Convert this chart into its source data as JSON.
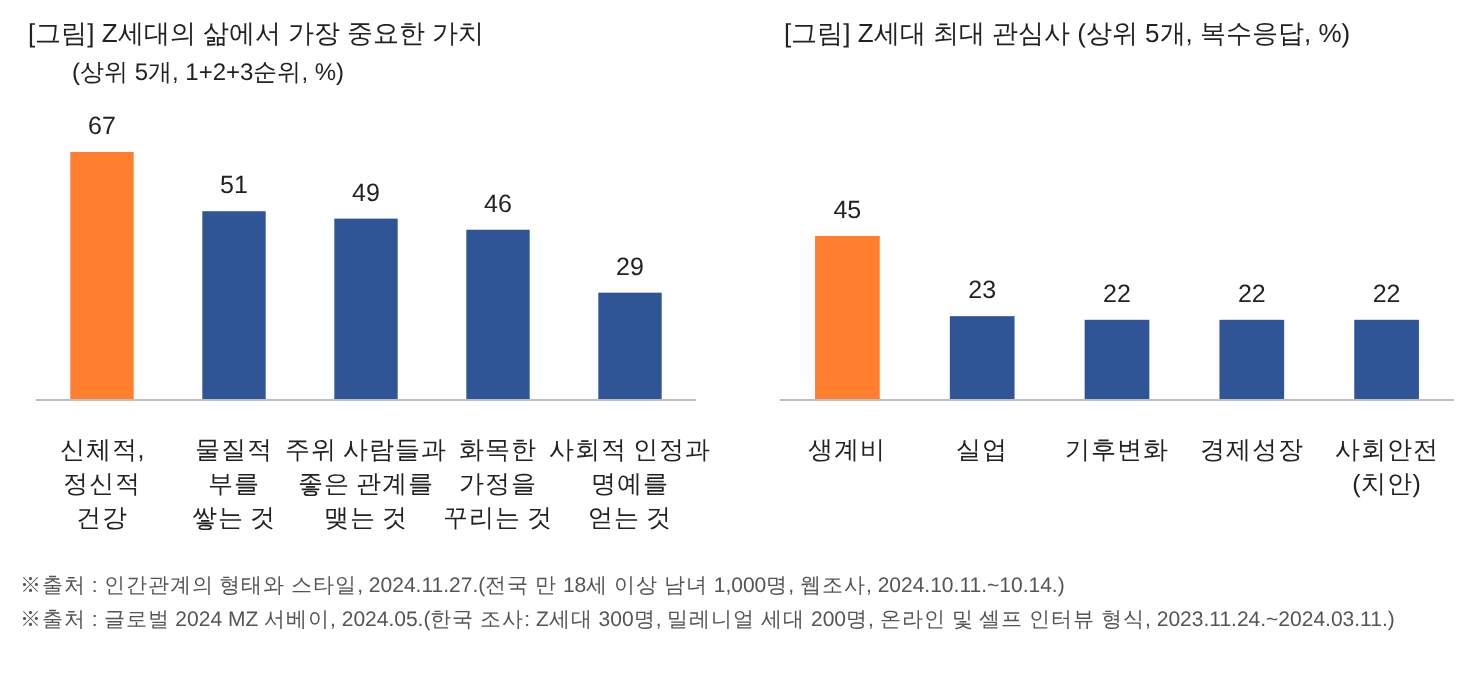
{
  "chart_data": [
    {
      "type": "bar",
      "title": "[그림] Z세대의 삶에서 가장 중요한 가치",
      "subtitle": "(상위 5개, 1+2+3순위, %)",
      "categories": [
        "신체적,\n정신적\n건강",
        "물질적\n부를\n쌓는 것",
        "주위 사람들과\n좋은 관계를\n맺는 것",
        "화목한\n가정을\n꾸리는 것",
        "사회적 인정과\n명예를\n얻는 것"
      ],
      "values": [
        67,
        51,
        49,
        46,
        29
      ],
      "colors": [
        "#ff7f2f",
        "#2f5597",
        "#2f5597",
        "#2f5597",
        "#2f5597"
      ],
      "data_labels": true,
      "annotations": [
        "※출처 : 인간관계의 형태와 스타일, 2024.11.27.(전국 만 18세 이상 남녀 1,000명, 웹조사, 2024.10.11.~10.14.)",
        "※출처 : 글로벌 2024 MZ 서베이, 2024.05.(한국 조사: Z세대 300명, 밀레니얼 세대 200명, 온라인 및 셀프 인터뷰 형식, 2023.11.24.~2024.03.11.)"
      ]
    },
    {
      "type": "bar",
      "title": "[그림] Z세대 최대 관심사 (상위 5개, 복수응답, %)",
      "categories": [
        "생계비",
        "실업",
        "기후변화",
        "경제성장",
        "사회안전\n(치안)"
      ],
      "values": [
        45,
        23,
        22,
        22,
        22
      ],
      "colors": [
        "#ff7f2f",
        "#2f5597",
        "#2f5597",
        "#2f5597",
        "#2f5597"
      ],
      "data_labels": true
    }
  ]
}
